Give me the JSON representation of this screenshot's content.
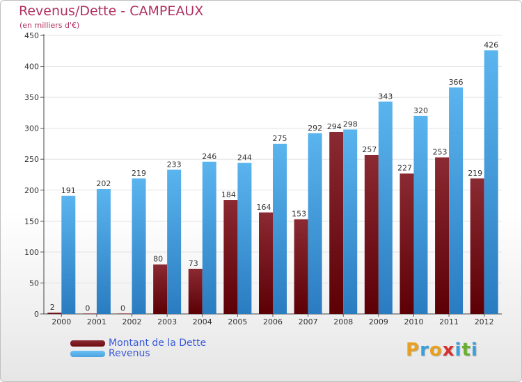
{
  "chart_data": {
    "type": "bar",
    "title": "Revenus/Dette - CAMPEAUX",
    "subtitle": "(en milliers d'€)",
    "categories": [
      "2000",
      "2001",
      "2002",
      "2003",
      "2004",
      "2005",
      "2006",
      "2007",
      "2008",
      "2009",
      "2010",
      "2011",
      "2012"
    ],
    "series": [
      {
        "name": "Montant de la Dette",
        "color": "#6e0c10",
        "values": [
          2,
          0,
          0,
          80,
          73,
          184,
          164,
          153,
          294,
          257,
          227,
          253,
          219
        ]
      },
      {
        "name": "Revenus",
        "color": "#4aa3e0",
        "values": [
          191,
          202,
          219,
          233,
          246,
          244,
          275,
          292,
          298,
          343,
          320,
          366,
          426
        ]
      }
    ],
    "ylim": [
      0,
      450
    ],
    "yticks": [
      0,
      50,
      100,
      150,
      200,
      250,
      300,
      350,
      400,
      450
    ],
    "grid": true,
    "legend_position": "bottom-left"
  },
  "logo": {
    "letters": [
      "P",
      "r",
      "o",
      "x",
      "i",
      "t",
      "i"
    ],
    "colors": [
      "#e8a020",
      "#3aa0d8",
      "#e8a020",
      "#d83030",
      "#3aa0d8",
      "#6ab030",
      "#3aa0d8"
    ]
  }
}
